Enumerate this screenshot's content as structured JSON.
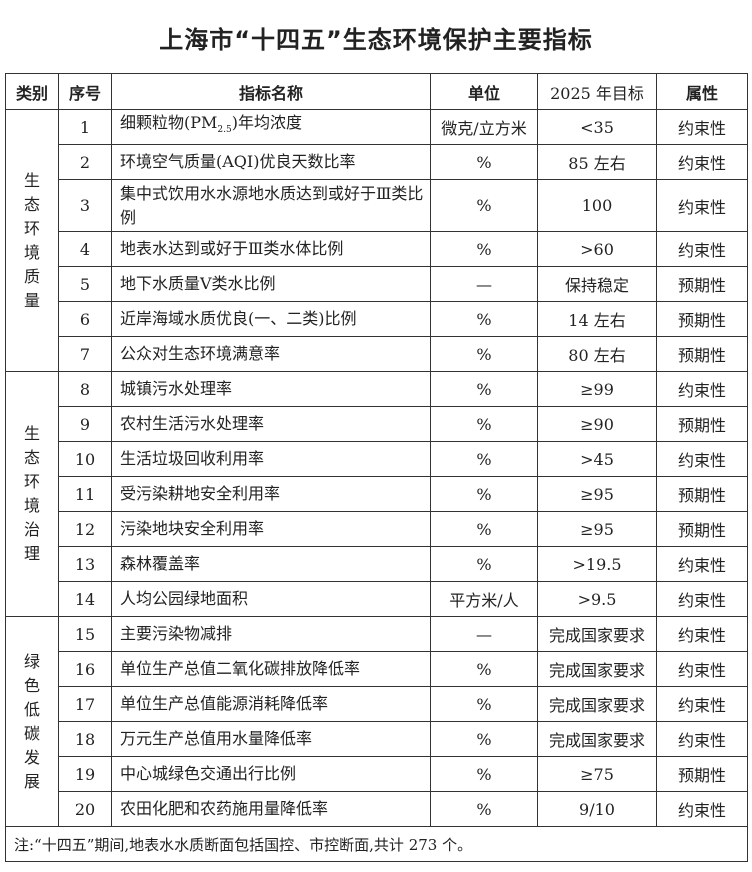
{
  "title": "上海市“十四五”生态环境保护主要指标",
  "headers": [
    "类别",
    "序号",
    "指标名称",
    "单位",
    "2025 年目标",
    "属性"
  ],
  "groups": [
    {
      "category": "生态环境质量",
      "rows": [
        {
          "no": "1",
          "name": "细颗粒物(PM",
          "name_sub": "2.5",
          "name_after": ")年均浓度",
          "unit": "微克/立方米",
          "target": "<35",
          "attr": "约束性"
        },
        {
          "no": "2",
          "name": "环境空气质量(AQI)优良天数比率",
          "unit": "%",
          "target": "85 左右",
          "attr": "约束性"
        },
        {
          "no": "3",
          "name": "集中式饮用水水源地水质达到或好于Ⅲ类比例",
          "unit": "%",
          "target": "100",
          "attr": "约束性"
        },
        {
          "no": "4",
          "name": "地表水达到或好于Ⅲ类水体比例",
          "unit": "%",
          "target": ">60",
          "attr": "约束性"
        },
        {
          "no": "5",
          "name": "地下水质量Ⅴ类水比例",
          "unit": "—",
          "target": "保持稳定",
          "attr": "预期性"
        },
        {
          "no": "6",
          "name": "近岸海域水质优良(一、二类)比例",
          "unit": "%",
          "target": "14 左右",
          "attr": "预期性"
        },
        {
          "no": "7",
          "name": "公众对生态环境满意率",
          "unit": "%",
          "target": "80 左右",
          "attr": "预期性"
        }
      ]
    },
    {
      "category": "生态环境治理",
      "rows": [
        {
          "no": "8",
          "name": "城镇污水处理率",
          "unit": "%",
          "target": "≥99",
          "attr": "约束性"
        },
        {
          "no": "9",
          "name": "农村生活污水处理率",
          "unit": "%",
          "target": "≥90",
          "attr": "预期性"
        },
        {
          "no": "10",
          "name": "生活垃圾回收利用率",
          "unit": "%",
          "target": ">45",
          "attr": "约束性"
        },
        {
          "no": "11",
          "name": "受污染耕地安全利用率",
          "unit": "%",
          "target": "≥95",
          "attr": "预期性"
        },
        {
          "no": "12",
          "name": "污染地块安全利用率",
          "unit": "%",
          "target": "≥95",
          "attr": "预期性"
        },
        {
          "no": "13",
          "name": "森林覆盖率",
          "unit": "%",
          "target": ">19.5",
          "attr": "约束性"
        },
        {
          "no": "14",
          "name": "人均公园绿地面积",
          "unit": "平方米/人",
          "target": ">9.5",
          "attr": "约束性"
        }
      ]
    },
    {
      "category": "绿色低碳发展",
      "rows": [
        {
          "no": "15",
          "name": "主要污染物减排",
          "unit": "—",
          "target": "完成国家要求",
          "attr": "约束性"
        },
        {
          "no": "16",
          "name": "单位生产总值二氧化碳排放降低率",
          "unit": "%",
          "target": "完成国家要求",
          "attr": "约束性"
        },
        {
          "no": "17",
          "name": "单位生产总值能源消耗降低率",
          "unit": "%",
          "target": "完成国家要求",
          "attr": "约束性"
        },
        {
          "no": "18",
          "name": "万元生产总值用水量降低率",
          "unit": "%",
          "target": "完成国家要求",
          "attr": "约束性"
        },
        {
          "no": "19",
          "name": "中心城绿色交通出行比例",
          "unit": "%",
          "target": "≥75",
          "attr": "预期性"
        },
        {
          "no": "20",
          "name": "农田化肥和农药施用量降低率",
          "unit": "%",
          "target": "9/10",
          "attr": "约束性"
        }
      ]
    }
  ],
  "note": "注:“十四五”期间,地表水水质断面包括国控、市控断面,共计 273 个。"
}
